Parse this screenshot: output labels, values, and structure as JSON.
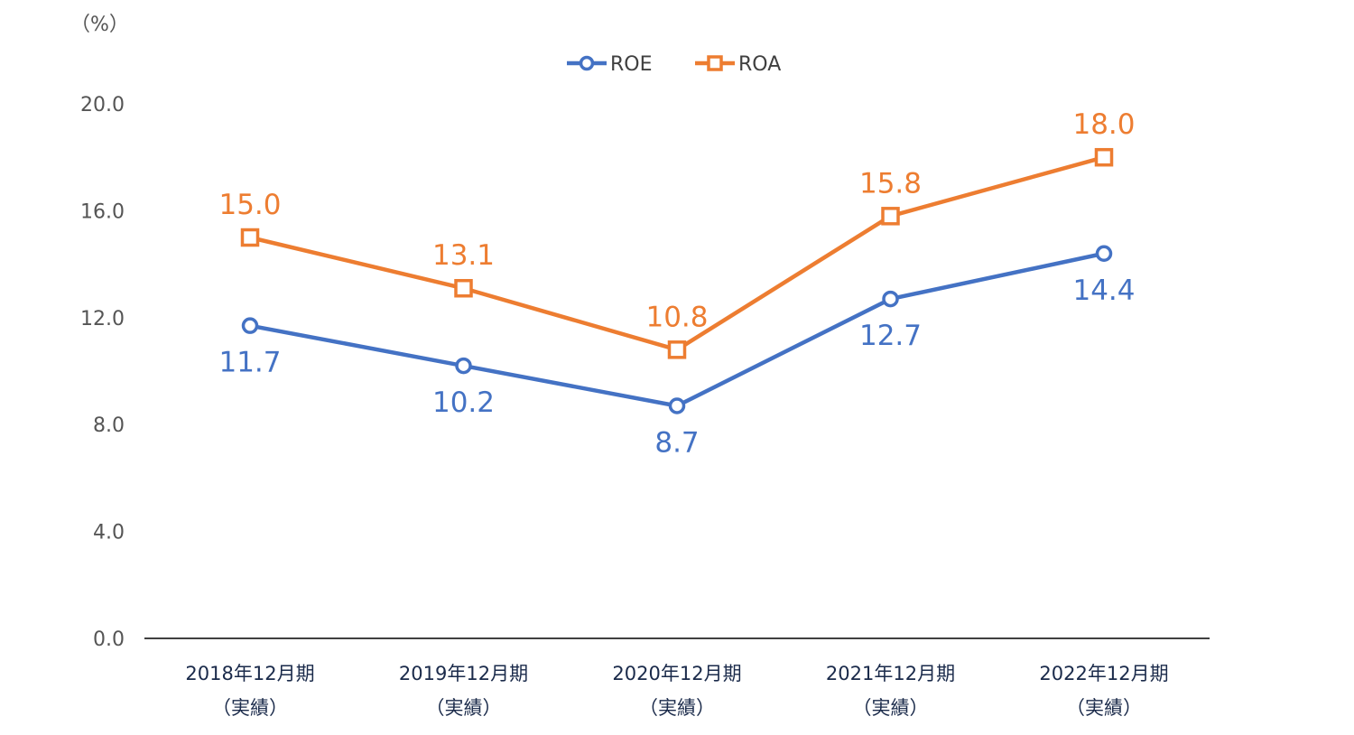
{
  "chart_data": {
    "type": "line",
    "unit_label": "（%）",
    "categories": [
      [
        "2018年12月期",
        "（実績）"
      ],
      [
        "2019年12月期",
        "（実績）"
      ],
      [
        "2020年12月期",
        "（実績）"
      ],
      [
        "2021年12月期",
        "（実績）"
      ],
      [
        "2022年12月期",
        "（実績）"
      ]
    ],
    "ylim": [
      0,
      20
    ],
    "yticks": [
      0,
      4,
      8,
      12,
      16,
      20
    ],
    "ytick_labels": [
      "0.0",
      "4.0",
      "8.0",
      "12.0",
      "16.0",
      "20.0"
    ],
    "grid": false,
    "legend_position": "top-center",
    "series": [
      {
        "name": "ROE",
        "marker": "circle",
        "color": "#4472c4",
        "label_position": "below",
        "values": [
          11.7,
          10.2,
          8.7,
          12.7,
          14.4
        ],
        "labels": [
          "11.7",
          "10.2",
          "8.7",
          "12.7",
          "14.4"
        ]
      },
      {
        "name": "ROA",
        "marker": "square",
        "color": "#ed7d31",
        "label_position": "above",
        "values": [
          15.0,
          13.1,
          10.8,
          15.8,
          18.0
        ],
        "labels": [
          "15.0",
          "13.1",
          "10.8",
          "15.8",
          "18.0"
        ]
      }
    ]
  }
}
